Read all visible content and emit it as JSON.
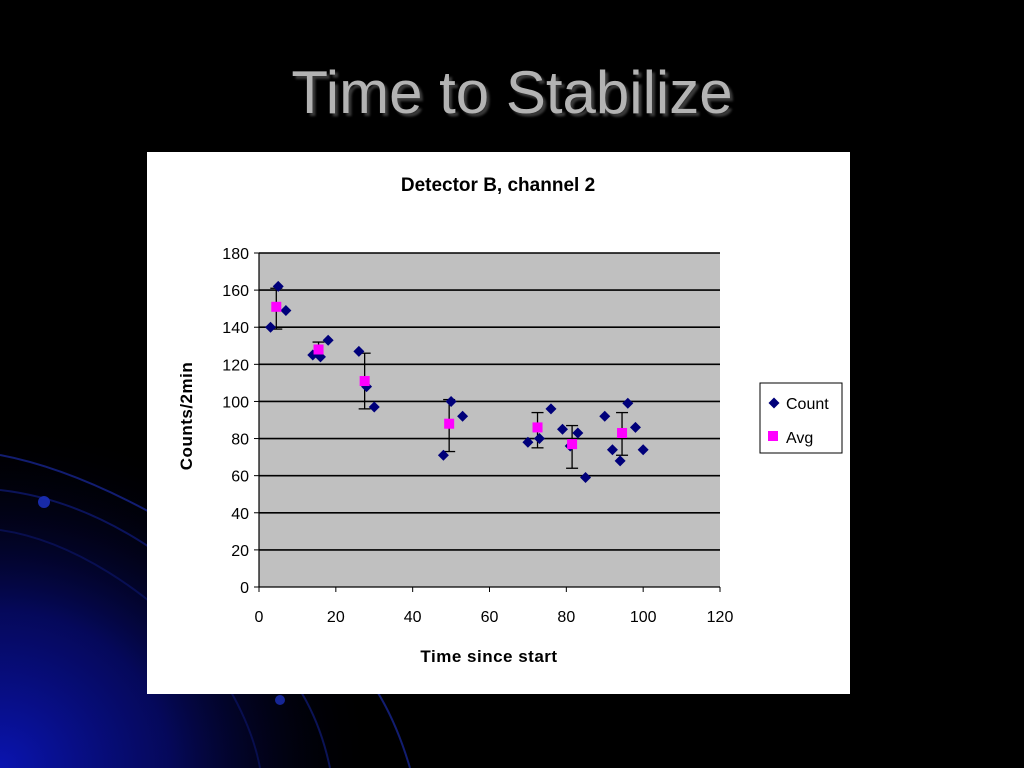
{
  "slide": {
    "title": "Time to Stabilize"
  },
  "colors": {
    "count_marker": "#00007a",
    "avg_marker": "#ff00ff",
    "plot_area": "#c0c0c0",
    "gridline": "#000000",
    "title_text": "#b3b3b3"
  },
  "chart_data": {
    "type": "scatter",
    "title": "Detector B, channel 2",
    "xlabel": "Time since start",
    "ylabel": "Counts/2min",
    "xlim": [
      0,
      120
    ],
    "ylim": [
      0,
      180
    ],
    "xticks": [
      0,
      20,
      40,
      60,
      80,
      100,
      120
    ],
    "yticks": [
      0,
      20,
      40,
      60,
      80,
      100,
      120,
      140,
      160,
      180
    ],
    "grid": "horizontal",
    "legend": "right",
    "series": [
      {
        "name": "Count",
        "marker": "diamond",
        "points": [
          [
            3,
            140
          ],
          [
            5,
            162
          ],
          [
            7,
            149
          ],
          [
            14,
            125
          ],
          [
            16,
            124
          ],
          [
            18,
            133
          ],
          [
            26,
            127
          ],
          [
            28,
            108
          ],
          [
            30,
            97
          ],
          [
            48,
            71
          ],
          [
            50,
            100
          ],
          [
            53,
            92
          ],
          [
            70,
            78
          ],
          [
            73,
            80
          ],
          [
            76,
            96
          ],
          [
            79,
            85
          ],
          [
            81,
            76
          ],
          [
            83,
            83
          ],
          [
            85,
            59
          ],
          [
            90,
            92
          ],
          [
            92,
            74
          ],
          [
            94,
            68
          ],
          [
            96,
            99
          ],
          [
            98,
            86
          ],
          [
            100,
            74
          ]
        ]
      },
      {
        "name": "Avg",
        "marker": "square",
        "points": [
          [
            4.5,
            151
          ],
          [
            15.5,
            128
          ],
          [
            27.5,
            111
          ],
          [
            49.5,
            88
          ],
          [
            72.5,
            86
          ],
          [
            81.5,
            77
          ],
          [
            94.5,
            83
          ]
        ],
        "error_low": [
          12,
          4,
          15,
          15,
          11,
          13,
          12
        ],
        "error_high": [
          10,
          4,
          15,
          13,
          8,
          10,
          11
        ]
      }
    ]
  }
}
